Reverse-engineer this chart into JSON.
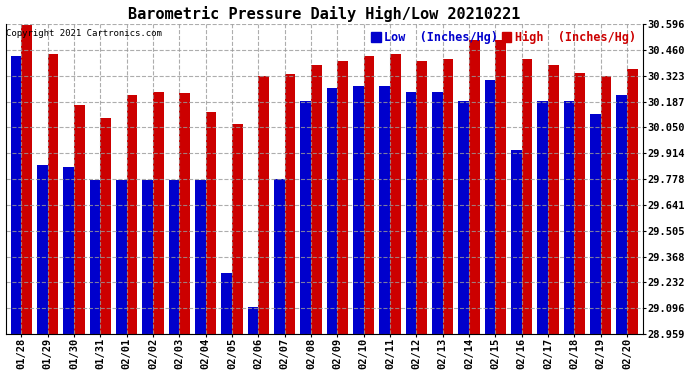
{
  "title": "Barometric Pressure Daily High/Low 20210221",
  "copyright": "Copyright 2021 Cartronics.com",
  "legend_low": "Low  (Inches/Hg)",
  "legend_high": "High  (Inches/Hg)",
  "dates": [
    "01/28",
    "01/29",
    "01/30",
    "01/31",
    "02/01",
    "02/02",
    "02/03",
    "02/04",
    "02/05",
    "02/06",
    "02/07",
    "02/08",
    "02/09",
    "02/10",
    "02/11",
    "02/12",
    "02/13",
    "02/14",
    "02/15",
    "02/16",
    "02/17",
    "02/18",
    "02/19",
    "02/20"
  ],
  "low": [
    30.43,
    29.85,
    29.84,
    29.77,
    29.77,
    29.77,
    29.77,
    29.77,
    29.28,
    29.1,
    29.78,
    30.19,
    30.26,
    30.27,
    30.27,
    30.24,
    30.24,
    30.19,
    30.3,
    29.93,
    30.19,
    30.19,
    30.12,
    30.22
  ],
  "high": [
    30.59,
    30.44,
    30.17,
    30.1,
    30.22,
    30.24,
    30.23,
    30.13,
    30.07,
    30.32,
    30.33,
    30.38,
    30.4,
    30.43,
    30.44,
    30.4,
    30.41,
    30.51,
    30.51,
    30.41,
    30.38,
    30.34,
    30.32,
    30.36
  ],
  "ymin": 28.959,
  "ymax": 30.596,
  "yticks": [
    28.959,
    29.096,
    29.232,
    29.368,
    29.505,
    29.641,
    29.778,
    29.914,
    30.05,
    30.187,
    30.323,
    30.46,
    30.596
  ],
  "bg_color": "#ffffff",
  "grid_color": "#999999",
  "low_color": "#0000cc",
  "high_color": "#cc0000",
  "bar_width": 0.4,
  "title_fontsize": 11,
  "tick_fontsize": 7.5,
  "label_fontsize": 8.5
}
